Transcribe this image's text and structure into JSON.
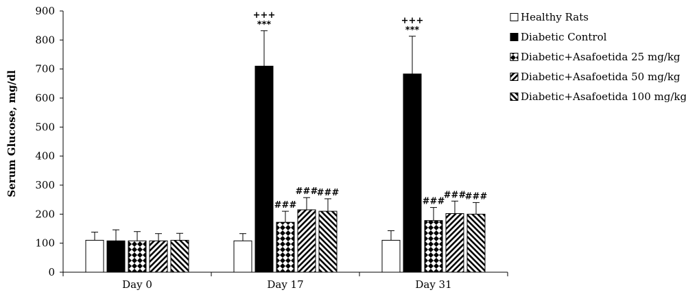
{
  "chart_data": {
    "type": "bar",
    "title": "",
    "xlabel": "",
    "ylabel": "Serum Glucose, mg/dl",
    "ylim": [
      0,
      900
    ],
    "yticks": [
      0,
      100,
      200,
      300,
      400,
      500,
      600,
      700,
      800,
      900
    ],
    "categories": [
      "Day 0",
      "Day 17",
      "Day 31"
    ],
    "grid": false,
    "legend_position": "right",
    "series": [
      {
        "name": "Healthy Rats",
        "pattern": "white",
        "values": [
          110,
          108,
          110
        ],
        "errors": [
          28,
          25,
          33
        ]
      },
      {
        "name": "Diabetic Control",
        "pattern": "black",
        "values": [
          108,
          710,
          683
        ],
        "errors": [
          38,
          122,
          130
        ]
      },
      {
        "name": "Diabetic+Asafoetida 25 mg/kg",
        "pattern": "diamond",
        "values": [
          108,
          172,
          178
        ],
        "errors": [
          32,
          38,
          45
        ]
      },
      {
        "name": "Diabetic+Asafoetida 50 mg/kg",
        "pattern": "forward-diagonal",
        "values": [
          108,
          215,
          202
        ],
        "errors": [
          25,
          42,
          43
        ]
      },
      {
        "name": "Diabetic+Asafoetida 100 mg/kg",
        "pattern": "backward-diagonal",
        "values": [
          110,
          210,
          200
        ],
        "errors": [
          24,
          43,
          40
        ]
      }
    ],
    "annotations": [
      {
        "category": 1,
        "series": 1,
        "lines": [
          "+++",
          "***"
        ]
      },
      {
        "category": 1,
        "series": 2,
        "lines": [
          "###"
        ]
      },
      {
        "category": 1,
        "series": 3,
        "lines": [
          "###"
        ]
      },
      {
        "category": 1,
        "series": 4,
        "lines": [
          "###"
        ]
      },
      {
        "category": 2,
        "series": 1,
        "lines": [
          "+++",
          "***"
        ]
      },
      {
        "category": 2,
        "series": 2,
        "lines": [
          "###"
        ]
      },
      {
        "category": 2,
        "series": 3,
        "lines": [
          "###"
        ]
      },
      {
        "category": 2,
        "series": 4,
        "lines": [
          "###"
        ]
      }
    ]
  }
}
